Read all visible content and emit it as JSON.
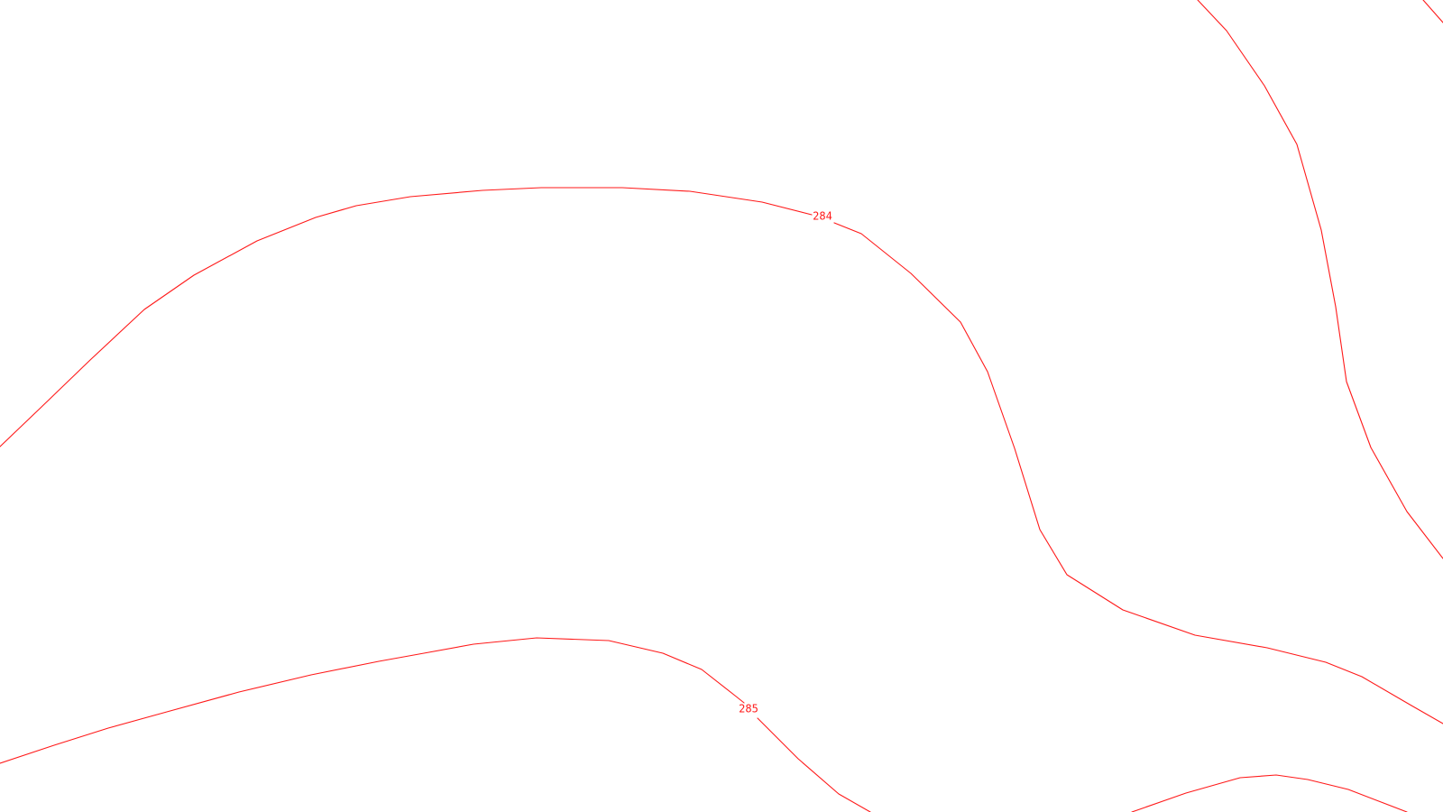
{
  "map": {
    "background_color": "#ffffff",
    "contour_color": "#ff1a1a",
    "contours": [
      {
        "id": "contour-284",
        "label": "284"
      },
      {
        "id": "contour-285",
        "label": "285"
      },
      {
        "id": "contour-upper-right",
        "label": ""
      },
      {
        "id": "contour-lower-right",
        "label": ""
      }
    ]
  }
}
